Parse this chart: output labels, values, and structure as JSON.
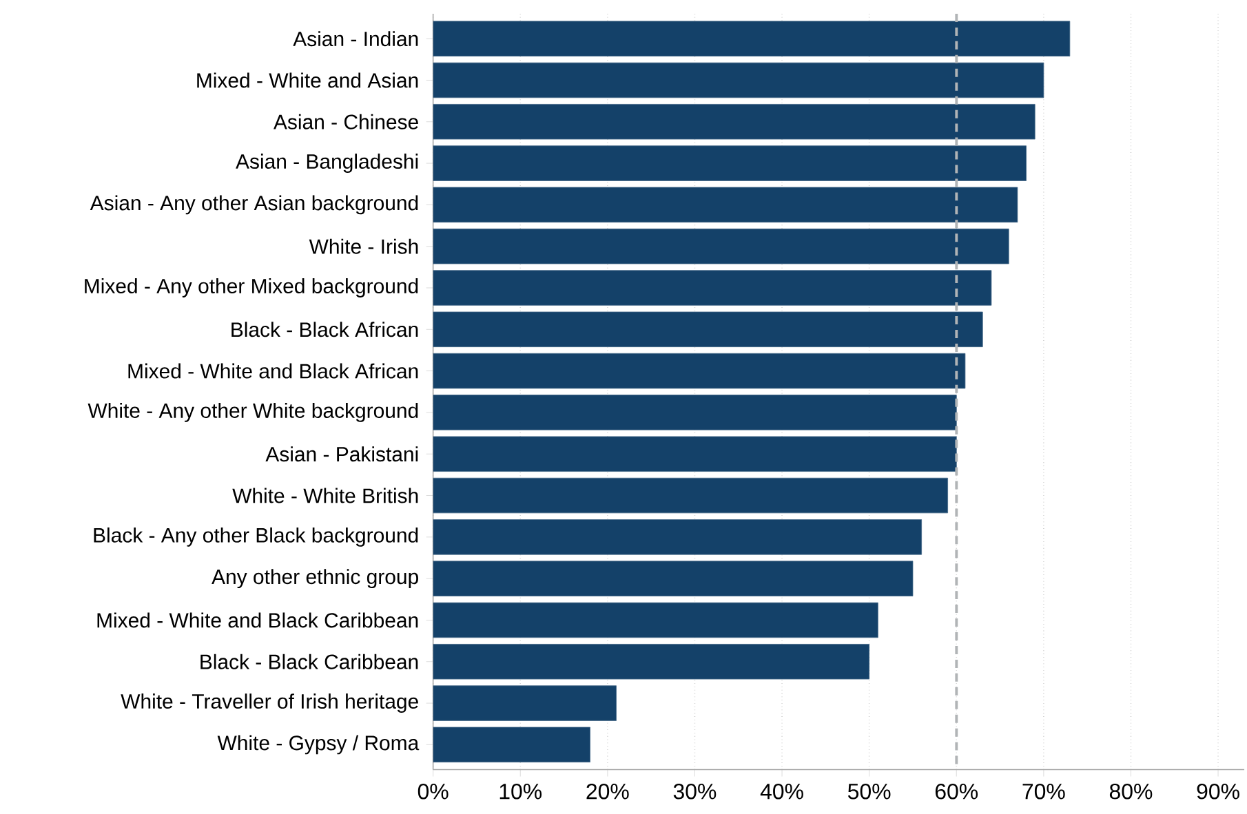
{
  "chart_data": {
    "type": "bar",
    "orientation": "horizontal",
    "categories": [
      "Asian - Indian",
      "Mixed - White and Asian",
      "Asian - Chinese",
      "Asian - Bangladeshi",
      "Asian - Any other Asian background",
      "White - Irish",
      "Mixed - Any other Mixed background",
      "Black - Black African",
      "Mixed - White and Black African",
      "White - Any other White background",
      "Asian - Pakistani",
      "White - White British",
      "Black - Any other Black background",
      "Any other ethnic group",
      "Mixed - White and Black Caribbean",
      "Black - Black Caribbean",
      "White - Traveller of Irish heritage",
      "White - Gypsy / Roma"
    ],
    "values": [
      73,
      70,
      69,
      68,
      67,
      66,
      64,
      63,
      61,
      60,
      60,
      59,
      56,
      55,
      51,
      50,
      21,
      18
    ],
    "color": "#144169",
    "xlim": [
      0,
      93
    ],
    "xticks": [
      {
        "value": 0,
        "label": "0%"
      },
      {
        "value": 10,
        "label": "10%"
      },
      {
        "value": 20,
        "label": "20%"
      },
      {
        "value": 30,
        "label": "30%"
      },
      {
        "value": 40,
        "label": "40%"
      },
      {
        "value": 50,
        "label": "50%"
      },
      {
        "value": 60,
        "label": "60%"
      },
      {
        "value": 70,
        "label": "70%"
      },
      {
        "value": 80,
        "label": "80%"
      },
      {
        "value": 90,
        "label": "90%"
      }
    ],
    "grid": "x",
    "ref_lines": [
      {
        "axis": "x",
        "value": 60,
        "color": "#b1b4b6",
        "line_style": "dashed"
      }
    ]
  }
}
